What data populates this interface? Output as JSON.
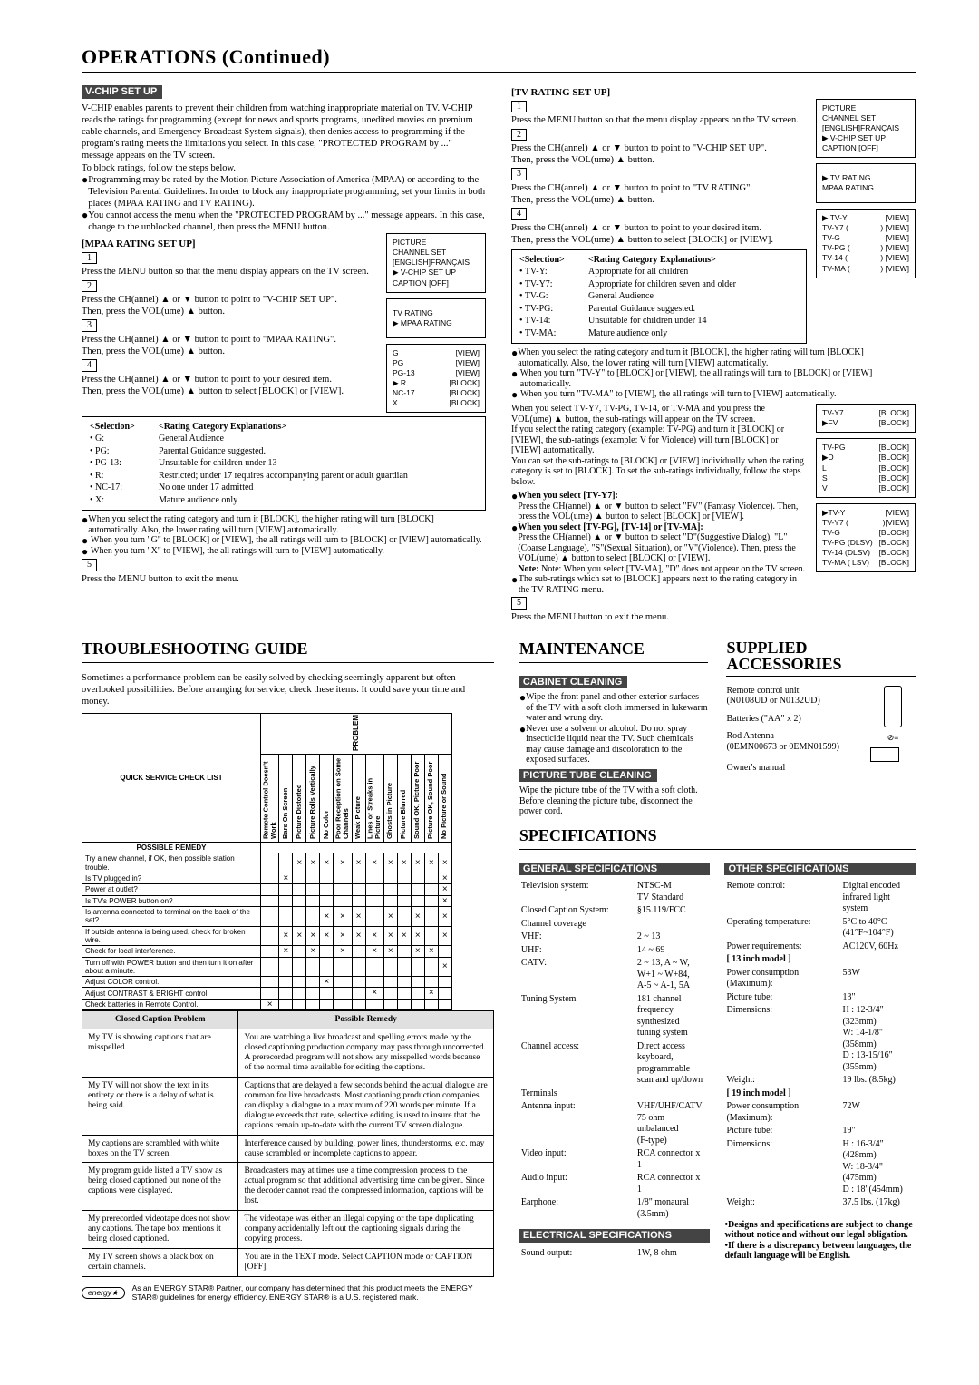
{
  "page_title": "OPERATIONS (Continued)",
  "vchip": {
    "bar": "V-CHIP SET UP",
    "intro": "V-CHIP enables parents to prevent their children from watching inappropriate material on TV. V-CHIP reads the ratings for programming (except for news and sports programs, unedited movies on premium cable channels, and Emergency Broadcast System signals), then denies access to programming if the program's rating meets the limitations you select. In this case, \"PROTECTED PROGRAM by ...\" message appears on the TV screen.",
    "intro2": "To block ratings, follow the steps below.",
    "bul1": "Programming may be rated by the Motion Picture Association of America (MPAA) or according to the Television Parental Guidelines. In order to block any inappropriate programming, set your limits in both places (MPAA RATING and TV RATING).",
    "bul2": "You cannot access the menu when the \"PROTECTED PROGRAM by ...\" message appears. In this case, change to the unblocked channel, then press the MENU button."
  },
  "mpaa": {
    "head": "[MPAA RATING SET UP]",
    "s1": "Press the MENU button so that the menu display appears on the TV screen.",
    "s2a": "Press the CH(annel) ▲ or ▼ button to point to \"V-CHIP SET UP\".",
    "s2b": "Then, press the VOL(ume) ▲ button.",
    "s3a": "Press the CH(annel) ▲ or ▼ button to point to \"MPAA RATING\".",
    "s3b": "Then, press the VOL(ume) ▲ button.",
    "s4a": "Press the CH(annel) ▲ or ▼ button to point to your desired item.",
    "s4b": "Then, press the VOL(ume) ▲ button to select [BLOCK] or [VIEW].",
    "sel_hdr_l": "<Selection>",
    "sel_hdr_r": "<Rating Category Explanations>",
    "rows": [
      [
        "• G:",
        "General Audience"
      ],
      [
        "• PG:",
        "Parental Guidance suggested."
      ],
      [
        "• PG-13:",
        "Unsuitable for children under 13"
      ],
      [
        "• R:",
        "Restricted; under 17 requires accompanying parent or adult guardian"
      ],
      [
        "• NC-17:",
        "No one under 17 admitted"
      ],
      [
        "• X:",
        "Mature audience only"
      ]
    ],
    "post1": "When you select the rating category and turn it [BLOCK], the higher rating will turn [BLOCK] automatically. Also, the lower rating will turn [VIEW] automatically.",
    "post2": "When you turn \"G\" to [BLOCK] or [VIEW], the all ratings will turn to [BLOCK] or [VIEW] automatically.",
    "post3": "When you turn \"X\" to [VIEW], the all ratings will turn to [VIEW] automatically.",
    "s5": "Press the MENU button to exit the menu.",
    "osd1": [
      "PICTURE",
      "CHANNEL SET",
      "[ENGLISH]FRANÇAIS",
      "▶ V-CHIP SET UP",
      "CAPTION [OFF]"
    ],
    "osd2": [
      "TV RATING",
      "▶ MPAA RATING"
    ],
    "osd3": [
      [
        "G",
        "[VIEW]"
      ],
      [
        "PG",
        "[VIEW]"
      ],
      [
        "PG-13",
        "[VIEW]"
      ],
      [
        "▶ R",
        "[BLOCK]"
      ],
      [
        "NC-17",
        "[BLOCK]"
      ],
      [
        "X",
        "[BLOCK]"
      ]
    ]
  },
  "tvr": {
    "head": "[TV RATING SET UP]",
    "s1": "Press the MENU button so that the menu display appears on the TV screen.",
    "s2a": "Press the CH(annel) ▲ or ▼ button to point to \"V-CHIP SET UP\".",
    "s2b": "Then, press the VOL(ume) ▲ button.",
    "s3a": "Press the CH(annel) ▲ or ▼ button to point to \"TV RATING\".",
    "s3b": "Then, press the VOL(ume) ▲ button.",
    "s4a": "Press the CH(annel) ▲ or ▼ button to point to your desired item.",
    "s4b": "Then, press the VOL(ume) ▲ button to select [BLOCK] or [VIEW].",
    "sel_hdr_l": "<Selection>",
    "sel_hdr_r": "<Rating Category Explanations>",
    "rows": [
      [
        "• TV-Y:",
        "Appropriate for all children"
      ],
      [
        "• TV-Y7:",
        "Appropriate for children seven and older"
      ],
      [
        "• TV-G:",
        "General Audience"
      ],
      [
        "• TV-PG:",
        "Parental Guidance suggested."
      ],
      [
        "• TV-14:",
        "Unsuitable for children under 14"
      ],
      [
        "• TV-MA:",
        "Mature audience only"
      ]
    ],
    "post1": "When you select the rating category and turn it [BLOCK], the higher rating will turn [BLOCK] automatically. Also, the lower rating will turn [VIEW] automatically.",
    "post2": "When you turn \"TV-Y\" to [BLOCK] or [VIEW], the all ratings will turn to [BLOCK] or [VIEW] automatically.",
    "post3": "When you turn \"TV-MA\" to [VIEW], the all ratings will turn to [VIEW] automatically.",
    "sub1": "When you select TV-Y7, TV-PG, TV-14, or TV-MA and you press the VOL(ume) ▲ button, the sub-ratings will appear on the TV screen.",
    "sub2": "If you select the rating category (example: TV-PG) and turn it [BLOCK] or [VIEW], the sub-ratings (example: V for Violence) will turn [BLOCK] or [VIEW] automatically.",
    "sub3": "You can set the sub-ratings to [BLOCK] or [VIEW] individually when the rating category is set to [BLOCK]. To set the sub-ratings individually, follow the steps below.",
    "wy7h": "When you select [TV-Y7]:",
    "wy7a": "Press the CH(annel) ▲ or ▼ button to select \"FV\" (Fantasy Violence). Then, press the VOL(ume) ▲ button to select [BLOCK] or [VIEW].",
    "wpgh": "When you select [TV-PG], [TV-14] or [TV-MA]:",
    "wpga": "Press the CH(annel) ▲ or ▼ button to select \"D\"(Suggestive Dialog), \"L\"(Coarse Language), \"S\"(Sexual Situation), or \"V\"(Violence). Then, press the VOL(ume) ▲ button to select [BLOCK] or [VIEW].",
    "wpgn": "Note: When you select [TV-MA], \"D\" does not appear on the TV screen.",
    "subend": "The sub-ratings which set to [BLOCK] appears next to the rating category in the TV RATING menu.",
    "s5": "Press the MENU button to exit the menu.",
    "osd1": [
      "PICTURE",
      "CHANNEL SET",
      "[ENGLISH]FRANÇAIS",
      "▶ V-CHIP SET UP",
      "CAPTION [OFF]"
    ],
    "osd2": [
      "▶ TV RATING",
      "MPAA RATING"
    ],
    "osd3": [
      [
        "▶ TV-Y",
        "[VIEW]"
      ],
      [
        "TV-Y7 (",
        "   ) [VIEW]"
      ],
      [
        "TV-G",
        "[VIEW]"
      ],
      [
        "TV-PG (",
        "   ) [VIEW]"
      ],
      [
        "TV-14 (",
        "   ) [VIEW]"
      ],
      [
        "TV-MA (",
        "   ) [VIEW]"
      ]
    ],
    "osd4": [
      [
        "TV-Y7",
        "[BLOCK]"
      ],
      [
        "",
        ""
      ],
      [
        "▶FV",
        "[BLOCK]"
      ]
    ],
    "osd5": [
      [
        "TV-PG",
        "[BLOCK]"
      ],
      [
        "",
        ""
      ],
      [
        "▶D",
        "[BLOCK]"
      ],
      [
        "L",
        "[BLOCK]"
      ],
      [
        "S",
        "[BLOCK]"
      ],
      [
        "V",
        "[BLOCK]"
      ]
    ],
    "osd6": [
      [
        "▶TV-Y",
        "[VIEW]"
      ],
      [
        "TV-Y7 (",
        "   )[VIEW]"
      ],
      [
        "TV-G",
        "[BLOCK]"
      ],
      [
        "TV-PG (DLSV)",
        "[BLOCK]"
      ],
      [
        "TV-14 (DLSV)",
        "[BLOCK]"
      ],
      [
        "TV-MA ( LSV)",
        "[BLOCK]"
      ]
    ]
  },
  "trouble": {
    "title": "TROUBLESHOOTING GUIDE",
    "intro": "Sometimes a performance problem can be easily solved by checking seemingly apparent but often overlooked possibilities. Before arranging for service, check these items. It could save your time and money.",
    "qsc_title": "QUICK SERVICE CHECK LIST",
    "prob_hdr": "PROBLEM",
    "rem_hdr": "POSSIBLE REMEDY",
    "cols": [
      "Remote Control Doesn't Work",
      "Bars On Screen",
      "Picture Distorted",
      "Picture Rolls Vertically",
      "No Color",
      "Poor Reception on Some Channels",
      "Weak Picture",
      "Lines or Streaks in Picture",
      "Ghosts in Picture",
      "Picture Blurred",
      "Sound OK, Picture Poor",
      "Picture OK, Sound Poor",
      "No Picture or Sound"
    ],
    "rows": [
      {
        "l": "Try a new channel, if OK, then possible station trouble.",
        "m": "0011111111111"
      },
      {
        "l": "Is TV plugged in?",
        "m": "0100000000001"
      },
      {
        "l": "Power at outlet?",
        "m": "0000000000001"
      },
      {
        "l": "Is TV's POWER button on?",
        "m": "0000000000001"
      },
      {
        "l": "Is antenna connected to terminal on the back of the set?",
        "m": "0000111010101"
      },
      {
        "l": "If outside antenna is being used, check for broken wire.",
        "m": "0111111111101"
      },
      {
        "l": "Check for local interference.",
        "m": "0101010110110"
      },
      {
        "l": "Turn off with POWER button and then turn it on after about a minute.",
        "m": "0000000000001"
      },
      {
        "l": "Adjust COLOR control.",
        "m": "0000100000000"
      },
      {
        "l": "Adjust CONTRAST & BRIGHT control.",
        "m": "0000000100010"
      },
      {
        "l": "Check batteries in Remote Control.",
        "m": "1000000000000"
      }
    ],
    "cc_hdr_l": "Closed Caption Problem",
    "cc_hdr_r": "Possible Remedy",
    "cc_rows": [
      [
        "My TV is showing captions that are misspelled.",
        "You are watching a live broadcast and spelling errors made by the closed captioning production company may pass through uncorrected. A prerecorded program will not show any misspelled words because of the normal time available for editing the captions."
      ],
      [
        "My TV will not show the text in its entirety or there is a delay of what is being said.",
        "Captions that are delayed a few seconds behind the actual dialogue are common for live broadcasts. Most captioning production companies can display a dialogue to a maximum of 220 words per minute. If a dialogue exceeds that rate, selective editing is used to insure that the captions remain up-to-date with the current TV screen dialogue."
      ],
      [
        "My captions are scrambled with white boxes on the TV screen.",
        "Interference caused by building, power lines, thunderstorms, etc. may cause scrambled or incomplete captions to appear."
      ],
      [
        "My program guide listed a TV show as being closed captioned but none of the captions were displayed.",
        "Broadcasters may at times use a time compression process to the actual program so that additional advertising time can be given. Since the decoder cannot read the compressed information, captions will be lost."
      ],
      [
        "My prerecorded videotape does not show any captions. The tape box mentions it being closed captioned.",
        "The videotape was either an illegal copying or the tape duplicating company accidentally left out the captioning signals during the copying process."
      ],
      [
        "My TV screen shows a black box on certain channels.",
        "You are in the TEXT mode. Select CAPTION mode or CAPTION [OFF]."
      ]
    ],
    "estar": "As an ENERGY STAR® Partner, our company has determined that this product meets the ENERGY STAR® guidelines for energy efficiency. ENERGY STAR® is a U.S. registered mark."
  },
  "maint": {
    "title": "MAINTENANCE",
    "bar1": "CABINET CLEANING",
    "b1a": "Wipe the front panel and other exterior surfaces of the TV with a soft cloth immersed in lukewarm water and wrung dry.",
    "b1b": "Never use a solvent or alcohol. Do not spray insecticide liquid near the TV. Such chemicals may cause damage and discoloration to the exposed surfaces.",
    "bar2": "PICTURE TUBE CLEANING",
    "b2": "Wipe the picture tube of the TV with a soft cloth. Before cleaning the picture tube, disconnect the power cord."
  },
  "supp": {
    "title": "SUPPLIED ACCESSORIES",
    "l1": "Remote control unit",
    "l1b": "(N0108UD or N0132UD)",
    "l2": "Batteries (\"AA\" x 2)",
    "l3": "Rod Antenna",
    "l3b": "(0EMN00673 or 0EMN01599)",
    "l4": "Owner's manual"
  },
  "specs": {
    "title": "SPECIFICATIONS",
    "bar1": "GENERAL SPECIFICATIONS",
    "bar2": "OTHER SPECIFICATIONS",
    "bar3": "ELECTRICAL SPECIFICATIONS",
    "gen": [
      [
        "Television system:",
        "NTSC-M\nTV Standard"
      ],
      [
        "Closed Caption System:",
        "§15.119/FCC"
      ],
      [
        "Channel coverage",
        ""
      ],
      [
        "    VHF:",
        "2 ~ 13"
      ],
      [
        "    UHF:",
        "14 ~ 69"
      ],
      [
        "    CATV:",
        "2 ~ 13, A ~ W,\nW+1 ~ W+84,\nA-5 ~ A-1, 5A"
      ],
      [
        "Tuning System",
        "181 channel\nfrequency synthesized\ntuning system"
      ],
      [
        "Channel access:",
        "Direct access keyboard,\nprogrammable\nscan and up/down"
      ],
      [
        "Terminals",
        ""
      ],
      [
        "    Antenna input:",
        "VHF/UHF/CATV\n75 ohm unbalanced\n(F-type)"
      ],
      [
        "    Video input:",
        "RCA connector x 1"
      ],
      [
        "    Audio input:",
        "RCA connector x 1"
      ],
      [
        "    Earphone:",
        "1/8\" monaural (3.5mm)"
      ]
    ],
    "oth": [
      [
        "Remote control:",
        "Digital encoded\ninfrared light system"
      ],
      [
        "Operating temperature:",
        "5°C to 40°C\n(41°F~104°F)"
      ],
      [
        "Power requirements:",
        "AC120V, 60Hz"
      ],
      [
        "[ 13 inch model ]",
        ""
      ],
      [
        "Power consumption (Maximum):",
        "53W"
      ],
      [
        "Picture tube:",
        "13\""
      ],
      [
        "Dimensions:",
        "H : 12-3/4\"(323mm)\nW: 14-1/8\"(358mm)\nD : 13-15/16\"(355mm)"
      ],
      [
        "Weight:",
        "19 lbs. (8.5kg)"
      ],
      [
        "[ 19 inch model ]",
        ""
      ],
      [
        "Power consumption (Maximum):",
        "72W"
      ],
      [
        "Picture tube:",
        "19\""
      ],
      [
        "Dimensions:",
        "H : 16-3/4\"(428mm)\nW: 18-3/4\"(475mm)\nD : 18\"(454mm)"
      ],
      [
        "Weight:",
        "37.5 lbs. (17kg)"
      ]
    ],
    "elec": [
      [
        "Sound output:",
        "1W, 8 ohm"
      ]
    ],
    "note": "•Designs and specifications are subject to change without notice and without our legal obligation.\n•If there is a discrepancy between languages, the default language will be English."
  }
}
